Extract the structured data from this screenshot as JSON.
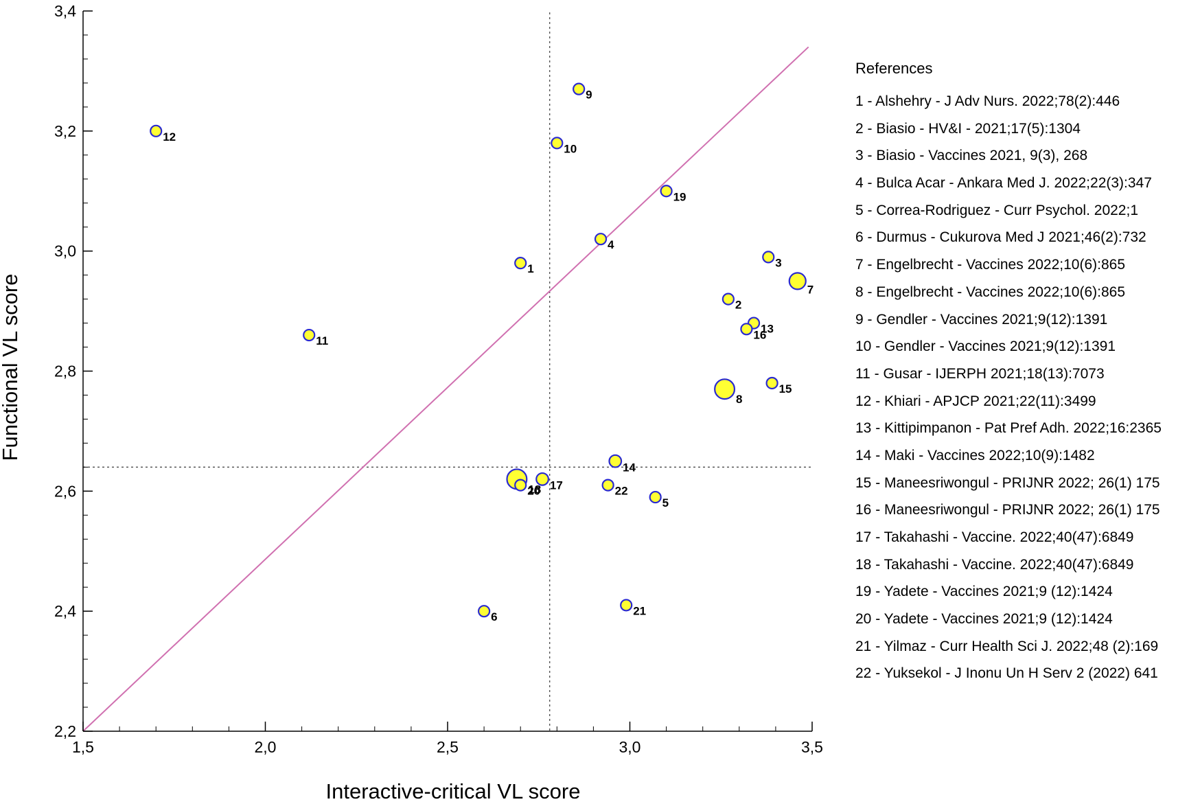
{
  "chart_data": {
    "type": "scatter",
    "xlabel": "Interactive-critical VL score",
    "ylabel": "Functional VL score",
    "xlim": [
      1.5,
      3.5
    ],
    "ylim": [
      2.2,
      3.4
    ],
    "x_ticks": [
      "1,5",
      "2,0",
      "2,5",
      "3,0",
      "3,5"
    ],
    "y_ticks": [
      "2,2",
      "2,4",
      "2,6",
      "2,8",
      "3,0",
      "3,2",
      "3,4"
    ],
    "x_tick_values": [
      1.5,
      2.0,
      2.5,
      3.0,
      3.5
    ],
    "y_tick_values": [
      2.2,
      2.4,
      2.6,
      2.8,
      3.0,
      3.2,
      3.4
    ],
    "reference_lines": {
      "vertical_x": 2.78,
      "horizontal_y": 2.64,
      "style": "dotted"
    },
    "diagonal_line": {
      "from": [
        1.5,
        2.2
      ],
      "to": [
        3.49,
        3.34
      ],
      "color": "#d070b0"
    },
    "marker_color": "#ffff33",
    "marker_edge_color": "#2a2ad0",
    "points": [
      {
        "id": "1",
        "x": 2.7,
        "y": 2.98,
        "size": 1
      },
      {
        "id": "2",
        "x": 3.27,
        "y": 2.92,
        "size": 1
      },
      {
        "id": "3",
        "x": 3.38,
        "y": 2.99,
        "size": 1
      },
      {
        "id": "4",
        "x": 2.92,
        "y": 3.02,
        "size": 1
      },
      {
        "id": "5",
        "x": 3.07,
        "y": 2.59,
        "size": 1
      },
      {
        "id": "6",
        "x": 2.6,
        "y": 2.4,
        "size": 1
      },
      {
        "id": "7",
        "x": 3.46,
        "y": 2.95,
        "size": 1.5
      },
      {
        "id": "8",
        "x": 3.26,
        "y": 2.77,
        "size": 1.8
      },
      {
        "id": "9",
        "x": 2.86,
        "y": 3.27,
        "size": 1
      },
      {
        "id": "10",
        "x": 2.8,
        "y": 3.18,
        "size": 1
      },
      {
        "id": "11",
        "x": 2.12,
        "y": 2.86,
        "size": 1
      },
      {
        "id": "12",
        "x": 1.7,
        "y": 3.2,
        "size": 1
      },
      {
        "id": "13",
        "x": 3.34,
        "y": 2.88,
        "size": 1
      },
      {
        "id": "14",
        "x": 2.96,
        "y": 2.65,
        "size": 1.1
      },
      {
        "id": "15",
        "x": 3.39,
        "y": 2.78,
        "size": 1
      },
      {
        "id": "16",
        "x": 3.32,
        "y": 2.87,
        "size": 1
      },
      {
        "id": "17",
        "x": 2.76,
        "y": 2.62,
        "size": 1.1
      },
      {
        "id": "18",
        "x": 2.69,
        "y": 2.62,
        "size": 1.8
      },
      {
        "id": "19",
        "x": 3.1,
        "y": 3.1,
        "size": 1
      },
      {
        "id": "20",
        "x": 2.7,
        "y": 2.61,
        "size": 1
      },
      {
        "id": "21",
        "x": 2.99,
        "y": 2.41,
        "size": 1
      },
      {
        "id": "22",
        "x": 2.94,
        "y": 2.61,
        "size": 1
      }
    ]
  },
  "legend": {
    "title": "References",
    "items": [
      "1 - Alshehry - J Adv Nurs. 2022;78(2):446",
      "2 - Biasio - HV&I - 2021;17(5):1304",
      "3 - Biasio - Vaccines 2021, 9(3), 268",
      "4 - Bulca Acar - Ankara Med J. 2022;22(3):347",
      "5 - Correa-Rodriguez - Curr Psychol. 2022;1",
      "6 - Durmus - Cukurova Med J 2021;46(2):732",
      "7 - Engelbrecht - Vaccines 2022;10(6):865",
      "8 - Engelbrecht - Vaccines 2022;10(6):865",
      "9 - Gendler - Vaccines 2021;9(12):1391",
      "10 - Gendler - Vaccines 2021;9(12):1391",
      "11 - Gusar - IJERPH 2021;18(13):7073",
      "12 - Khiari - APJCP 2021;22(11):3499",
      "13 - Kittipimpanon - Pat Pref Adh. 2022;16:2365",
      "14 - Maki - Vaccines 2022;10(9):1482",
      "15 - Maneesriwongul - PRIJNR 2022; 26(1) 175",
      "16 - Maneesriwongul - PRIJNR 2022; 26(1) 175",
      "17 - Takahashi - Vaccine. 2022;40(47):6849",
      "18 - Takahashi - Vaccine. 2022;40(47):6849",
      "19 - Yadete - Vaccines 2021;9 (12):1424",
      "20 - Yadete - Vaccines 2021;9 (12):1424",
      "21 - Yilmaz - Curr Health Sci J. 2022;48 (2):169",
      "22 - Yuksekol - J Inonu Un H Serv 2 (2022) 641"
    ]
  }
}
